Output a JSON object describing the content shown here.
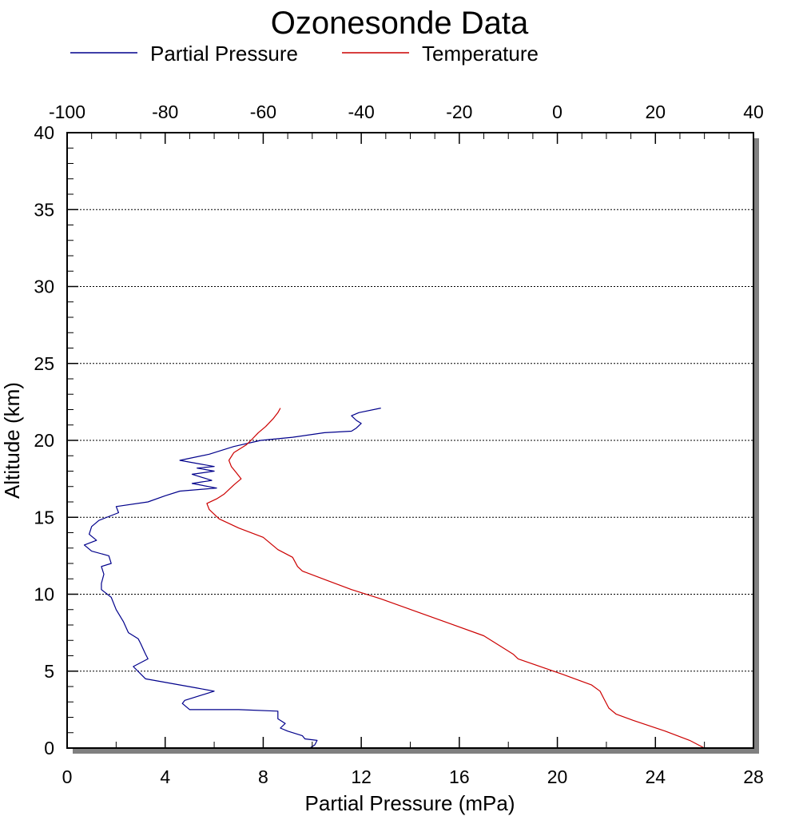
{
  "chart_data": {
    "type": "line",
    "title": "Ozonesonde Data",
    "legend": {
      "placement": "top",
      "entries": [
        "Partial Pressure",
        "Temperature"
      ]
    },
    "y": {
      "label": "Altitude (km)",
      "range": [
        0,
        40
      ],
      "ticks": [
        0,
        5,
        10,
        15,
        20,
        25,
        30,
        35,
        40
      ],
      "grid": true
    },
    "x_bottom": {
      "label": "Partial Pressure (mPa)",
      "range": [
        0,
        28
      ],
      "ticks": [
        0,
        4,
        8,
        12,
        16,
        20,
        24,
        28
      ]
    },
    "x_top": {
      "label": "",
      "range": [
        -100,
        40
      ],
      "ticks": [
        -100,
        -80,
        -60,
        -40,
        -20,
        0,
        20,
        40
      ]
    },
    "series": [
      {
        "name": "Partial Pressure",
        "color": "#00008B",
        "axis": "bottom",
        "points": [
          [
            9.9,
            0.0
          ],
          [
            10.1,
            0.2
          ],
          [
            10.2,
            0.5
          ],
          [
            9.7,
            0.6
          ],
          [
            9.6,
            0.8
          ],
          [
            9.0,
            1.1
          ],
          [
            8.7,
            1.3
          ],
          [
            8.9,
            1.6
          ],
          [
            8.6,
            1.9
          ],
          [
            8.6,
            2.4
          ],
          [
            7.0,
            2.5
          ],
          [
            5.0,
            2.5
          ],
          [
            4.7,
            2.9
          ],
          [
            4.8,
            3.1
          ],
          [
            6.0,
            3.7
          ],
          [
            5.3,
            3.9
          ],
          [
            3.2,
            4.5
          ],
          [
            2.7,
            5.3
          ],
          [
            3.3,
            5.8
          ],
          [
            3.2,
            6.1
          ],
          [
            3.0,
            6.8
          ],
          [
            2.9,
            7.1
          ],
          [
            2.5,
            7.5
          ],
          [
            2.3,
            8.2
          ],
          [
            2.0,
            9.0
          ],
          [
            1.8,
            9.8
          ],
          [
            1.4,
            10.3
          ],
          [
            1.4,
            10.7
          ],
          [
            1.5,
            11.3
          ],
          [
            1.4,
            11.8
          ],
          [
            1.8,
            12.0
          ],
          [
            1.7,
            12.5
          ],
          [
            1.0,
            12.8
          ],
          [
            0.7,
            13.2
          ],
          [
            1.2,
            13.5
          ],
          [
            0.9,
            13.9
          ],
          [
            1.0,
            14.4
          ],
          [
            1.3,
            14.8
          ],
          [
            2.1,
            15.3
          ],
          [
            2.0,
            15.7
          ],
          [
            3.3,
            16.0
          ],
          [
            4.0,
            16.4
          ],
          [
            4.6,
            16.7
          ],
          [
            6.1,
            16.9
          ],
          [
            5.1,
            17.2
          ],
          [
            5.9,
            17.4
          ],
          [
            5.1,
            17.8
          ],
          [
            6.0,
            18.0
          ],
          [
            5.3,
            18.2
          ],
          [
            6.0,
            18.3
          ],
          [
            4.6,
            18.7
          ],
          [
            5.8,
            19.1
          ],
          [
            6.8,
            19.6
          ],
          [
            7.9,
            20.0
          ],
          [
            9.2,
            20.2
          ],
          [
            10.5,
            20.5
          ],
          [
            11.6,
            20.6
          ],
          [
            11.8,
            20.8
          ],
          [
            12.0,
            21.1
          ],
          [
            11.8,
            21.3
          ],
          [
            11.6,
            21.6
          ],
          [
            11.9,
            21.8
          ],
          [
            12.8,
            22.1
          ]
        ]
      },
      {
        "name": "Temperature",
        "color": "#CC0000",
        "axis": "top",
        "points": [
          [
            30.0,
            0.0
          ],
          [
            27.0,
            0.5
          ],
          [
            22.0,
            1.1
          ],
          [
            15.5,
            1.8
          ],
          [
            12.0,
            2.2
          ],
          [
            10.5,
            2.6
          ],
          [
            9.5,
            3.2
          ],
          [
            8.7,
            3.7
          ],
          [
            7.0,
            4.1
          ],
          [
            1.0,
            4.8
          ],
          [
            -8.0,
            5.8
          ],
          [
            -9.0,
            6.1
          ],
          [
            -15.0,
            7.3
          ],
          [
            -22.0,
            8.1
          ],
          [
            -29.0,
            8.9
          ],
          [
            -36.0,
            9.7
          ],
          [
            -42.0,
            10.3
          ],
          [
            -47.0,
            10.9
          ],
          [
            -52.0,
            11.5
          ],
          [
            -53.0,
            11.8
          ],
          [
            -54.0,
            12.4
          ],
          [
            -57.0,
            12.9
          ],
          [
            -60.0,
            13.7
          ],
          [
            -65.0,
            14.3
          ],
          [
            -69.0,
            14.9
          ],
          [
            -71.0,
            15.5
          ],
          [
            -71.5,
            15.9
          ],
          [
            -69.5,
            16.2
          ],
          [
            -68.0,
            16.5
          ],
          [
            -67.0,
            16.8
          ],
          [
            -66.0,
            17.1
          ],
          [
            -64.5,
            17.5
          ],
          [
            -65.5,
            17.9
          ],
          [
            -66.5,
            18.3
          ],
          [
            -67.0,
            18.7
          ],
          [
            -66.0,
            19.2
          ],
          [
            -63.5,
            19.7
          ],
          [
            -62.5,
            20.0
          ],
          [
            -61.0,
            20.5
          ],
          [
            -59.5,
            20.9
          ],
          [
            -58.0,
            21.4
          ],
          [
            -57.0,
            21.8
          ],
          [
            -56.5,
            22.1
          ]
        ]
      }
    ]
  }
}
